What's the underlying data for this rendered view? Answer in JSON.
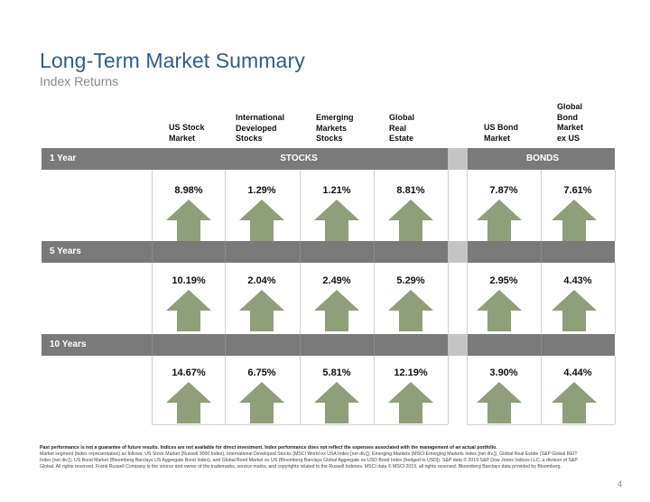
{
  "title": "Long-Term Market Summary",
  "subtitle": "Index Returns",
  "columns": [
    {
      "label": "US Stock\nMarket"
    },
    {
      "label": "International\nDeveloped\nStocks"
    },
    {
      "label": "Emerging\nMarkets\nStocks"
    },
    {
      "label": "Global\nReal\nEstate"
    },
    {
      "label": "US Bond\nMarket"
    },
    {
      "label": "Global\nBond\nMarket\nex US"
    }
  ],
  "groups": {
    "stocks": "STOCKS",
    "bonds": "BONDS"
  },
  "periods": [
    {
      "label": "1 Year",
      "values": [
        "8.98%",
        "1.29%",
        "1.21%",
        "8.81%",
        "7.87%",
        "7.61%"
      ],
      "directions": [
        "up",
        "up",
        "up",
        "up",
        "up",
        "up"
      ]
    },
    {
      "label": "5 Years",
      "values": [
        "10.19%",
        "2.04%",
        "2.49%",
        "5.29%",
        "2.95%",
        "4.43%"
      ],
      "directions": [
        "up",
        "up",
        "up",
        "up",
        "up",
        "up"
      ]
    },
    {
      "label": "10 Years",
      "values": [
        "14.67%",
        "6.75%",
        "5.81%",
        "12.19%",
        "3.90%",
        "4.44%"
      ],
      "directions": [
        "up",
        "up",
        "up",
        "up",
        "up",
        "up"
      ]
    }
  ],
  "arrow_color": "#8f9f7a",
  "footer": {
    "bold": "Past performance is not a guarantee of future results. Indices are not available for direct investment. Index performance does not reflect the expenses associated with the management of an actual portfolio.",
    "text": "Market segment (index representation) as follows: US Stock Market (Russell 3000 Index), International Developed Stocks (MSCI World ex USA Index [net div.]), Emerging Markets (MSCI Emerging Markets Index [net div.]), Global Real Estate (S&P Global REIT Index [net div.]), US Bond Market (Bloomberg Barclays US Aggregate Bond Index), and Global Bond Market ex US (Bloomberg Barclays Global Aggregate ex-USD Bond Index [hedged to USD]). S&P data © 2019 S&P Dow Jones Indices LLC, a division of S&P Global. All rights reserved. Frank Russell Company is the source and owner of the trademarks, service marks, and copyrights related to the Russell Indexes. MSCI data © MSCI 2019, all rights reserved. Bloomberg Barclays data provided by Bloomberg."
  },
  "page_number": "4"
}
